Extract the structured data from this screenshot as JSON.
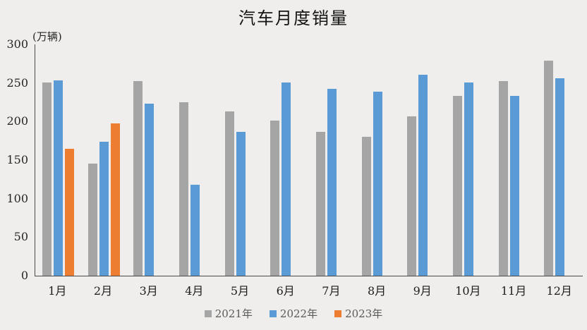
{
  "page": {
    "background": "#efeeec"
  },
  "chart_data": {
    "type": "bar",
    "title": "汽车月度销量",
    "unit_label": "(万辆)",
    "categories": [
      "1月",
      "2月",
      "3月",
      "4月",
      "5月",
      "6月",
      "7月",
      "8月",
      "9月",
      "10月",
      "11月",
      "12月"
    ],
    "series": [
      {
        "name": "2021年",
        "color": "#a5a5a5",
        "values": [
          250.3,
          145.5,
          252.6,
          225.2,
          212.8,
          201.5,
          186.4,
          179.9,
          206.7,
          233.3,
          252.2,
          278.6
        ]
      },
      {
        "name": "2022年",
        "color": "#5b9bd5",
        "values": [
          253.1,
          173.7,
          223.4,
          118.1,
          186.2,
          250.2,
          242.0,
          238.3,
          261.0,
          250.5,
          232.8,
          255.7
        ]
      },
      {
        "name": "2023年",
        "color": "#ed7d31",
        "values": [
          164.9,
          197.6,
          null,
          null,
          null,
          null,
          null,
          null,
          null,
          null,
          null,
          null
        ]
      }
    ],
    "ylim": [
      0,
      300
    ],
    "yticks": [
      0,
      50,
      100,
      150,
      200,
      250,
      300
    ],
    "grid": false,
    "legend_position": "bottom",
    "axis_color": "#4a4a4a",
    "text_color": "#262626",
    "legend_text_color": "#595959"
  },
  "layout_note_values_estimated_from_axis": true
}
